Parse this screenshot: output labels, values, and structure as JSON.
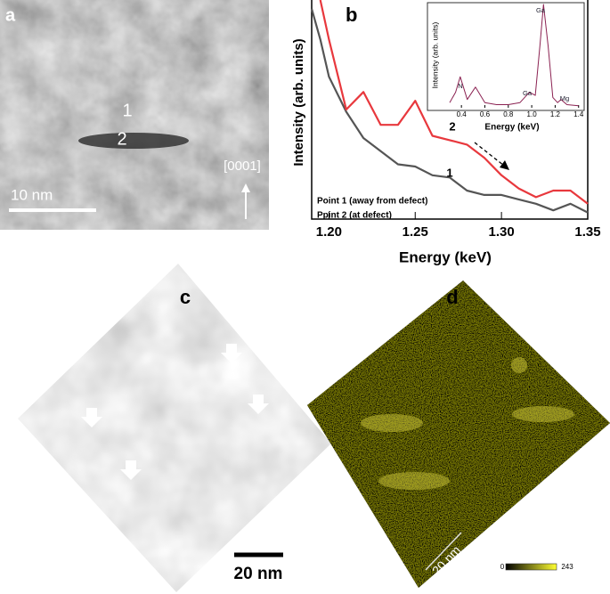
{
  "panels": {
    "a": {
      "label": "a",
      "markers": [
        "1",
        "2"
      ],
      "scale_bar": "10 nm",
      "direction": "[0001]"
    },
    "b": {
      "label": "b"
    },
    "c": {
      "label": "c",
      "scale_bar": "20 nm"
    },
    "d": {
      "label": "d",
      "scale_bar": "20 nm",
      "colorbar_ticks": [
        0,
        243
      ]
    }
  },
  "chart_data": [
    {
      "type": "line",
      "xlabel": "Energy (keV)",
      "ylabel": "Intensity  (arb. units)",
      "xlim": [
        1.19,
        1.35
      ],
      "ylim": [
        0,
        100
      ],
      "xticks": [
        {
          "value": 1.2,
          "label": "1.20"
        },
        1.25,
        {
          "value": 1.3,
          "label": "1.30"
        },
        1.35
      ],
      "x": [
        1.19,
        1.195,
        1.2,
        1.21,
        1.22,
        1.23,
        1.24,
        1.25,
        1.26,
        1.27,
        1.28,
        1.29,
        1.3,
        1.31,
        1.32,
        1.33,
        1.34,
        1.35
      ],
      "series": [
        {
          "name": "Point 1 (away from defect)",
          "color": "#555555",
          "values": [
            96,
            82,
            65,
            49,
            37,
            31,
            25,
            24,
            20,
            19,
            13,
            11,
            11,
            9,
            7,
            4,
            7,
            3
          ]
        },
        {
          "name": "Ppint 2 (at defect)",
          "color": "#e8383d",
          "values": [
            null,
            100,
            82,
            50,
            58,
            43,
            43,
            54,
            38,
            36,
            34,
            28,
            20,
            14,
            10,
            13,
            13,
            7
          ]
        }
      ],
      "annotations": [
        "1",
        "2"
      ],
      "legend": "lower left"
    },
    {
      "type": "line",
      "xlabel": "Energy (keV)",
      "ylabel": "Intensity  (arb. units)",
      "xlim": [
        0.3,
        1.44
      ],
      "ylim": [
        0,
        100
      ],
      "xticks": [
        0.4,
        0.6,
        0.8,
        {
          "value": 1,
          "label": "1.0"
        },
        1.2,
        1.4
      ],
      "x": [
        0.3,
        0.35,
        0.39,
        0.45,
        0.52,
        0.6,
        0.7,
        0.8,
        0.9,
        0.98,
        1.03,
        1.07,
        1.1,
        1.14,
        1.18,
        1.22,
        1.25,
        1.3,
        1.4
      ],
      "series": [
        {
          "color": "#8b2252",
          "values": [
            5,
            15,
            30,
            8,
            20,
            5,
            3,
            3,
            5,
            15,
            12,
            60,
            100,
            60,
            10,
            5,
            8,
            3,
            2
          ]
        }
      ],
      "annotations": [
        "N",
        "Ga",
        "Ga",
        "Mg"
      ]
    }
  ]
}
